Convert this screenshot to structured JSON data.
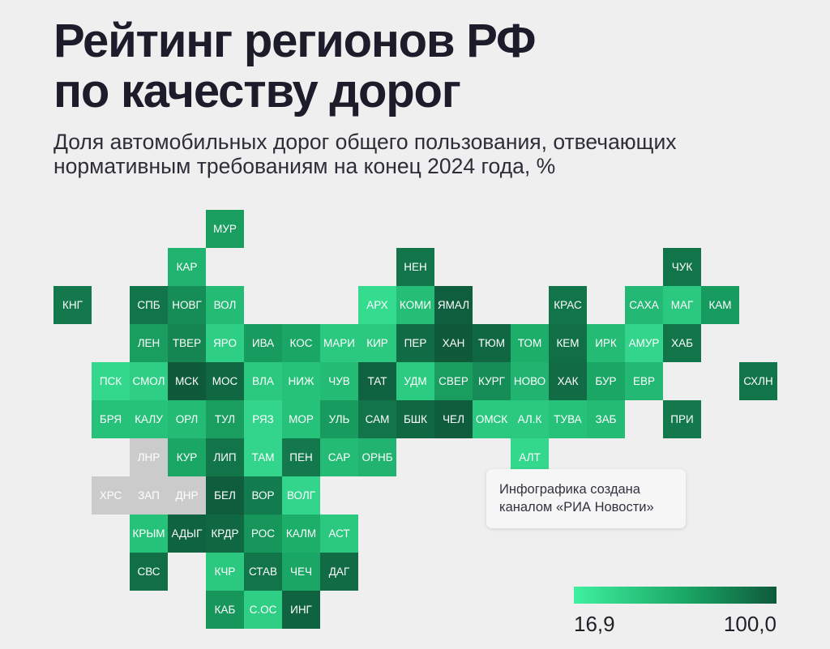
{
  "title": [
    "Рейтинг регионов РФ",
    "по качеству дорог"
  ],
  "subtitle": [
    "Доля автомобильных дорог общего пользования, отвечающих",
    "нормативным требованиям на конец 2024 года, %"
  ],
  "note": [
    "Инфографика создана",
    "каналом «РИА Новости»"
  ],
  "legend": {
    "min_label": "16,9",
    "max_label": "100,0",
    "min": 16.9,
    "max": 100.0
  },
  "colors": {
    "low": "#3ff0a0",
    "mid": "#1aa765",
    "high": "#0e5a3b",
    "no_data": "#cbcbcb",
    "background": "#efefef"
  },
  "regions": [
    {
      "label": "МУР",
      "row": 0,
      "col": 5,
      "level": 0.6
    },
    {
      "label": "КАР",
      "row": 1,
      "col": 4,
      "level": 0.45
    },
    {
      "label": "НЕН",
      "row": 1,
      "col": 10,
      "level": 0.85
    },
    {
      "label": "ЧУК",
      "row": 1,
      "col": 17,
      "level": 0.85
    },
    {
      "label": "КНГ",
      "row": 2,
      "col": 1,
      "level": 0.82
    },
    {
      "label": "СПБ",
      "row": 2,
      "col": 3,
      "level": 0.85
    },
    {
      "label": "НОВГ",
      "row": 2,
      "col": 4,
      "level": 0.7
    },
    {
      "label": "ВОЛ",
      "row": 2,
      "col": 5,
      "level": 0.4
    },
    {
      "label": "АРХ",
      "row": 2,
      "col": 9,
      "level": 0.15
    },
    {
      "label": "КОМИ",
      "row": 2,
      "col": 10,
      "level": 0.38
    },
    {
      "label": "ЯМАЛ",
      "row": 2,
      "col": 11,
      "level": 0.97
    },
    {
      "label": "КРАС",
      "row": 2,
      "col": 14,
      "level": 0.85
    },
    {
      "label": "САХА",
      "row": 2,
      "col": 16,
      "level": 0.42
    },
    {
      "label": "МАГ",
      "row": 2,
      "col": 17,
      "level": 0.3
    },
    {
      "label": "КАМ",
      "row": 2,
      "col": 18,
      "level": 0.62
    },
    {
      "label": "ЛЕН",
      "row": 3,
      "col": 3,
      "level": 0.6
    },
    {
      "label": "ТВЕР",
      "row": 3,
      "col": 4,
      "level": 0.75
    },
    {
      "label": "ЯРО",
      "row": 3,
      "col": 5,
      "level": 0.25
    },
    {
      "label": "ИВА",
      "row": 3,
      "col": 6,
      "level": 0.62
    },
    {
      "label": "КОС",
      "row": 3,
      "col": 7,
      "level": 0.55
    },
    {
      "label": "МАРИ",
      "row": 3,
      "col": 8,
      "level": 0.3
    },
    {
      "label": "КИР",
      "row": 3,
      "col": 9,
      "level": 0.3
    },
    {
      "label": "ПЕР",
      "row": 3,
      "col": 10,
      "level": 0.9
    },
    {
      "label": "ХАН",
      "row": 3,
      "col": 11,
      "level": 1.0
    },
    {
      "label": "ТЮМ",
      "row": 3,
      "col": 12,
      "level": 0.92
    },
    {
      "label": "ТОМ",
      "row": 3,
      "col": 13,
      "level": 0.5
    },
    {
      "label": "КЕМ",
      "row": 3,
      "col": 14,
      "level": 0.88
    },
    {
      "label": "ИРК",
      "row": 3,
      "col": 15,
      "level": 0.4
    },
    {
      "label": "АМУР",
      "row": 3,
      "col": 16,
      "level": 0.2
    },
    {
      "label": "ХАБ",
      "row": 3,
      "col": 17,
      "level": 0.85
    },
    {
      "label": "ПСК",
      "row": 4,
      "col": 2,
      "level": 0.18
    },
    {
      "label": "СМОЛ",
      "row": 4,
      "col": 3,
      "level": 0.25
    },
    {
      "label": "МСК",
      "row": 4,
      "col": 4,
      "level": 1.0
    },
    {
      "label": "МОС",
      "row": 4,
      "col": 5,
      "level": 0.92
    },
    {
      "label": "ВЛА",
      "row": 4,
      "col": 6,
      "level": 0.3
    },
    {
      "label": "НИЖ",
      "row": 4,
      "col": 7,
      "level": 0.35
    },
    {
      "label": "ЧУВ",
      "row": 4,
      "col": 8,
      "level": 0.4
    },
    {
      "label": "ТАТ",
      "row": 4,
      "col": 9,
      "level": 0.95
    },
    {
      "label": "УДМ",
      "row": 4,
      "col": 10,
      "level": 0.28
    },
    {
      "label": "СВЕР",
      "row": 4,
      "col": 11,
      "level": 0.6
    },
    {
      "label": "КУРГ",
      "row": 4,
      "col": 12,
      "level": 0.7
    },
    {
      "label": "НОВО",
      "row": 4,
      "col": 13,
      "level": 0.45
    },
    {
      "label": "ХАК",
      "row": 4,
      "col": 14,
      "level": 0.9
    },
    {
      "label": "БУР",
      "row": 4,
      "col": 15,
      "level": 0.55
    },
    {
      "label": "ЕВР",
      "row": 4,
      "col": 16,
      "level": 0.42
    },
    {
      "label": "СХЛН",
      "row": 4,
      "col": 19,
      "level": 0.85
    },
    {
      "label": "БРЯ",
      "row": 5,
      "col": 2,
      "level": 0.35
    },
    {
      "label": "КАЛУ",
      "row": 5,
      "col": 3,
      "level": 0.35
    },
    {
      "label": "ОРЛ",
      "row": 5,
      "col": 4,
      "level": 0.4
    },
    {
      "label": "ТУЛ",
      "row": 5,
      "col": 5,
      "level": 0.6
    },
    {
      "label": "РЯЗ",
      "row": 5,
      "col": 6,
      "level": 0.2
    },
    {
      "label": "МОР",
      "row": 5,
      "col": 7,
      "level": 0.35
    },
    {
      "label": "УЛЬ",
      "row": 5,
      "col": 8,
      "level": 0.62
    },
    {
      "label": "САМ",
      "row": 5,
      "col": 9,
      "level": 0.85
    },
    {
      "label": "БШК",
      "row": 5,
      "col": 10,
      "level": 0.92
    },
    {
      "label": "ЧЕЛ",
      "row": 5,
      "col": 11,
      "level": 0.98
    },
    {
      "label": "ОМСК",
      "row": 5,
      "col": 12,
      "level": 0.3
    },
    {
      "label": "АЛ.К",
      "row": 5,
      "col": 13,
      "level": 0.3
    },
    {
      "label": "ТУВА",
      "row": 5,
      "col": 14,
      "level": 0.35
    },
    {
      "label": "ЗАБ",
      "row": 5,
      "col": 15,
      "level": 0.4
    },
    {
      "label": "ПРИ",
      "row": 5,
      "col": 17,
      "level": 0.82
    },
    {
      "label": "ЛНР",
      "row": 6,
      "col": 3,
      "nodata": true
    },
    {
      "label": "КУР",
      "row": 6,
      "col": 4,
      "level": 0.55
    },
    {
      "label": "ЛИП",
      "row": 6,
      "col": 5,
      "level": 0.85
    },
    {
      "label": "ТАМ",
      "row": 6,
      "col": 6,
      "level": 0.2
    },
    {
      "label": "ПЕН",
      "row": 6,
      "col": 7,
      "level": 0.82
    },
    {
      "label": "САР",
      "row": 6,
      "col": 8,
      "level": 0.4
    },
    {
      "label": "ОРНБ",
      "row": 6,
      "col": 9,
      "level": 0.45
    },
    {
      "label": "АЛТ",
      "row": 6,
      "col": 13,
      "level": 0.18
    },
    {
      "label": "ХРС",
      "row": 7,
      "col": 2,
      "nodata": true
    },
    {
      "label": "ЗАП",
      "row": 7,
      "col": 3,
      "nodata": true
    },
    {
      "label": "ДНР",
      "row": 7,
      "col": 4,
      "nodata": true
    },
    {
      "label": "БЕЛ",
      "row": 7,
      "col": 5,
      "level": 0.98
    },
    {
      "label": "ВОР",
      "row": 7,
      "col": 6,
      "level": 0.8
    },
    {
      "label": "ВОЛГ",
      "row": 7,
      "col": 7,
      "level": 0.2
    },
    {
      "label": "КРЫМ",
      "row": 8,
      "col": 3,
      "level": 0.35
    },
    {
      "label": "АДЫГ",
      "row": 8,
      "col": 4,
      "level": 0.95
    },
    {
      "label": "КРДР",
      "row": 8,
      "col": 5,
      "level": 0.92
    },
    {
      "label": "РОС",
      "row": 8,
      "col": 6,
      "level": 0.65
    },
    {
      "label": "КАЛМ",
      "row": 8,
      "col": 7,
      "level": 0.5
    },
    {
      "label": "АСТ",
      "row": 8,
      "col": 8,
      "level": 0.3
    },
    {
      "label": "СВС",
      "row": 9,
      "col": 3,
      "level": 0.88
    },
    {
      "label": "КЧР",
      "row": 9,
      "col": 5,
      "level": 0.3
    },
    {
      "label": "СТАВ",
      "row": 9,
      "col": 6,
      "level": 0.85
    },
    {
      "label": "ЧЕЧ",
      "row": 9,
      "col": 7,
      "level": 0.55
    },
    {
      "label": "ДАГ",
      "row": 9,
      "col": 8,
      "level": 0.9
    },
    {
      "label": "КАБ",
      "row": 10,
      "col": 5,
      "level": 0.65
    },
    {
      "label": "С.ОС",
      "row": 10,
      "col": 6,
      "level": 0.25
    },
    {
      "label": "ИНГ",
      "row": 10,
      "col": 7,
      "level": 0.95
    }
  ]
}
